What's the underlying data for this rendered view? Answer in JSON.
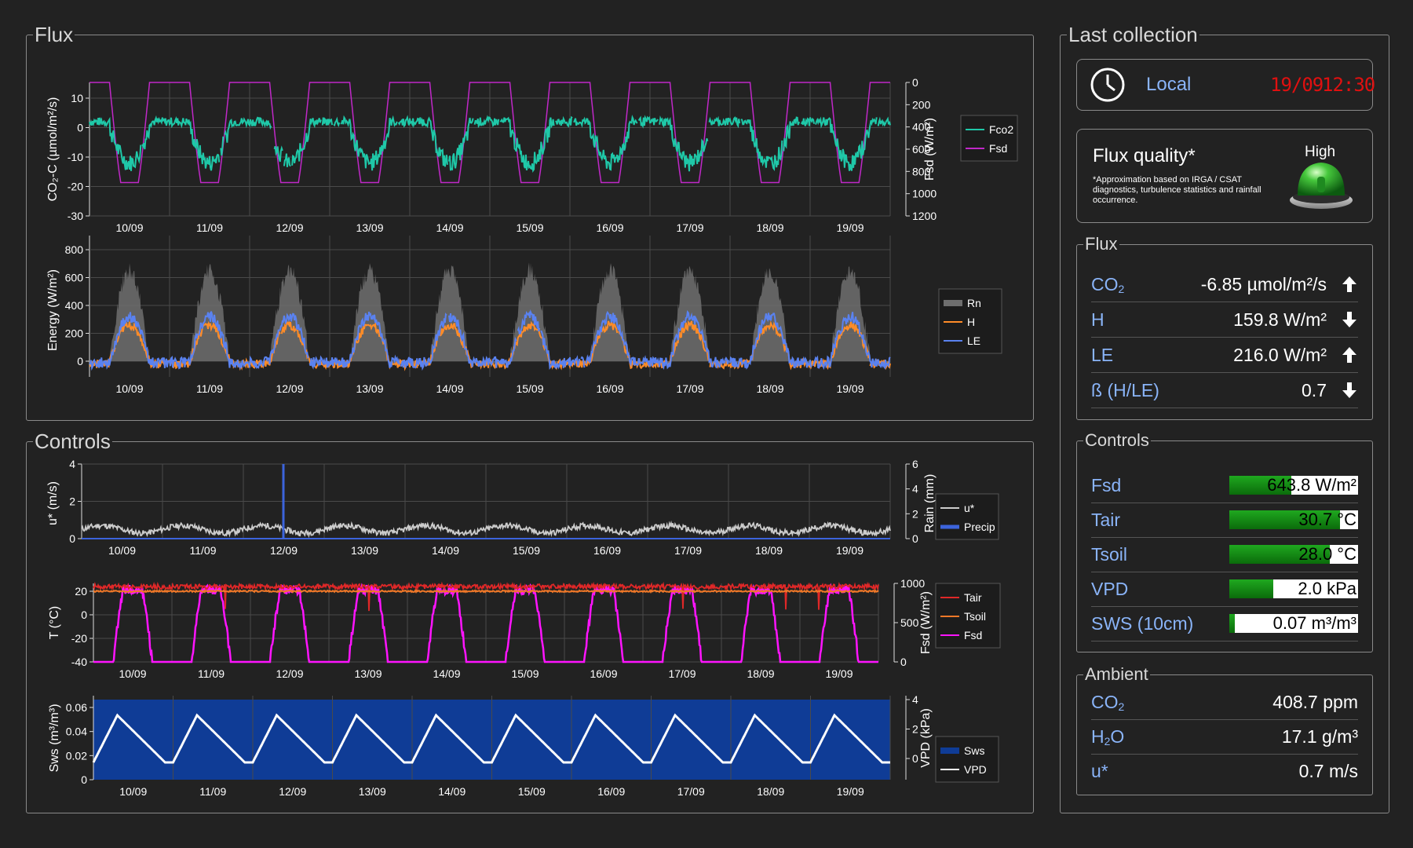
{
  "panels": {
    "flux": "Flux",
    "controls": "Controls",
    "last_collection": "Last collection"
  },
  "dates": [
    "10/09",
    "11/09",
    "12/09",
    "13/09",
    "14/09",
    "15/09",
    "16/09",
    "17/09",
    "18/09",
    "19/09"
  ],
  "charts": {
    "co2": {
      "ylabel": "CO₂-C (µmol/m²/s)",
      "y2label": "Fsd (W/m²)",
      "yticks": [
        "10",
        "0",
        "-10",
        "-20",
        "-30"
      ],
      "y2ticks": [
        "0",
        "200",
        "400",
        "600",
        "800",
        "1000",
        "1200"
      ],
      "legend": [
        "Fco2",
        "Fsd"
      ],
      "colors": [
        "#1fc8a8",
        "#c028c8"
      ]
    },
    "energy": {
      "ylabel": "Energy (W/m²)",
      "yticks": [
        "800",
        "600",
        "400",
        "200",
        "0"
      ],
      "legend": [
        "Rn",
        "H",
        "LE"
      ],
      "colors": [
        "#6e6e6e",
        "#ff8c28",
        "#5a82f0"
      ]
    },
    "ustar": {
      "ylabel": "u* (m/s)",
      "y2label": "Rain (mm)",
      "yticks": [
        "4",
        "2",
        "0"
      ],
      "y2ticks": [
        "6",
        "4",
        "2",
        "0"
      ],
      "legend": [
        "u*",
        "Precip"
      ],
      "colors": [
        "#cccccc",
        "#3c64dc"
      ]
    },
    "temp": {
      "ylabel": "T (°C)",
      "y2label": "Fsd (W/m²)",
      "yticks": [
        "20",
        "0",
        "-20",
        "-40"
      ],
      "y2ticks": [
        "1000",
        "500",
        "0"
      ],
      "legend": [
        "Tair",
        "Tsoil",
        "Fsd"
      ],
      "colors": [
        "#e02828",
        "#f07828",
        "#ff14ff"
      ]
    },
    "sws": {
      "ylabel": "Sws (m³/m³)",
      "y2label": "VPD (kPa)",
      "yticks": [
        "0.06",
        "0.04",
        "0.02",
        "0"
      ],
      "y2ticks": [
        "4",
        "2",
        "0"
      ],
      "legend": [
        "Sws",
        "VPD"
      ],
      "colors": [
        "#0f3c96",
        "#ffffff"
      ]
    }
  },
  "last": {
    "local_label": "Local",
    "date": "19/09",
    "time": "12:30",
    "quality_title": "Flux quality*",
    "quality_level": "High",
    "quality_note": "*Approximation based on IRGA / CSAT diagnostics, turbulence statistics and rainfall occurrence.",
    "flux_title": "Flux",
    "flux_rows": [
      {
        "label": "CO",
        "sub": "2",
        "value": "-6.85 µmol/m²/s",
        "dir": "up"
      },
      {
        "label": "H",
        "sub": "",
        "value": "159.8 W/m²",
        "dir": "down"
      },
      {
        "label": "LE",
        "sub": "",
        "value": "216.0 W/m²",
        "dir": "up"
      },
      {
        "label": "ß (H/LE)",
        "sub": "",
        "value": "0.7",
        "dir": "down"
      }
    ],
    "controls_title": "Controls",
    "control_rows": [
      {
        "label": "Fsd",
        "value": "643.8 W/m²",
        "fill": 0.48
      },
      {
        "label": "Tair",
        "value": "30.7 °C",
        "fill": 0.86
      },
      {
        "label": "Tsoil",
        "value": "28.0 °C",
        "fill": 0.78
      },
      {
        "label": "VPD",
        "value": "2.0 kPa",
        "fill": 0.34
      },
      {
        "label": "SWS (10cm)",
        "value": "0.07 m³/m³",
        "fill": 0.04
      }
    ],
    "ambient_title": "Ambient",
    "ambient_rows": [
      {
        "label": "CO",
        "sub": "2",
        "value": "408.7 ppm"
      },
      {
        "label": "H",
        "sub": "2",
        "label2": "O",
        "value": "17.1 g/m³"
      },
      {
        "label": "u*",
        "sub": "",
        "value": "0.7 m/s"
      }
    ]
  },
  "status_colors": {
    "clock_text": "#e01010",
    "accent": "#8ab4f8",
    "bar_fill": "#1a9a1a"
  }
}
